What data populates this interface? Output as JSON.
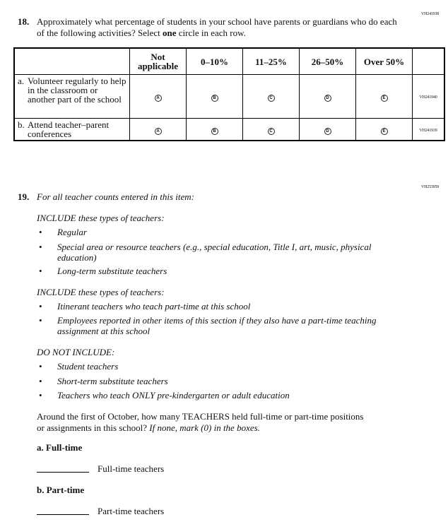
{
  "q18": {
    "code": "VH241938",
    "number": "18.",
    "text_before": "Approximately what percentage of students in your school have parents or guardians who do each of the following activities? Select ",
    "text_bold": "one",
    "text_after": " circle in each row.",
    "columns": [
      "Not applicable",
      "0–10%",
      "11–25%",
      "26–50%",
      "Over 50%"
    ],
    "options": [
      "A",
      "B",
      "C",
      "D",
      "E"
    ],
    "rows": [
      {
        "letter": "a.",
        "label": "Volunteer regularly to help in the classroom or another part of the school",
        "code": "VH241940"
      },
      {
        "letter": "b.",
        "label": "Attend teacher–parent conferences",
        "code": "VH241939"
      }
    ]
  },
  "q19": {
    "code": "VH253959",
    "number": "19.",
    "intro": "For all teacher counts entered in this item:",
    "include1_heading": "INCLUDE these types of teachers:",
    "include1_items": [
      "Regular",
      "Special area or resource teachers (e.g., special education, Title I, art, music, physical education)",
      "Long-term substitute teachers"
    ],
    "include2_heading": "INCLUDE these types of teachers:",
    "include2_items": [
      "Itinerant teachers who teach part-time at this school",
      "Employees reported in other items of this section if they also have a part-time teaching assignment at this school"
    ],
    "exclude_heading": "DO NOT INCLUDE:",
    "exclude_items": [
      "Student teachers",
      "Short-term substitute teachers",
      "Teachers who teach ONLY pre-kindergarten or adult education"
    ],
    "question": "Around the first of October, how many TEACHERS held full-time or part-time positions or assignments in this school? ",
    "question_italic": "If none, mark (0) in the boxes.",
    "a_label": "a. Full-time",
    "a_suffix": "Full-time teachers",
    "a_value": "",
    "b_label": "b. Part-time",
    "b_suffix": "Part-time teachers",
    "b_value": ""
  }
}
